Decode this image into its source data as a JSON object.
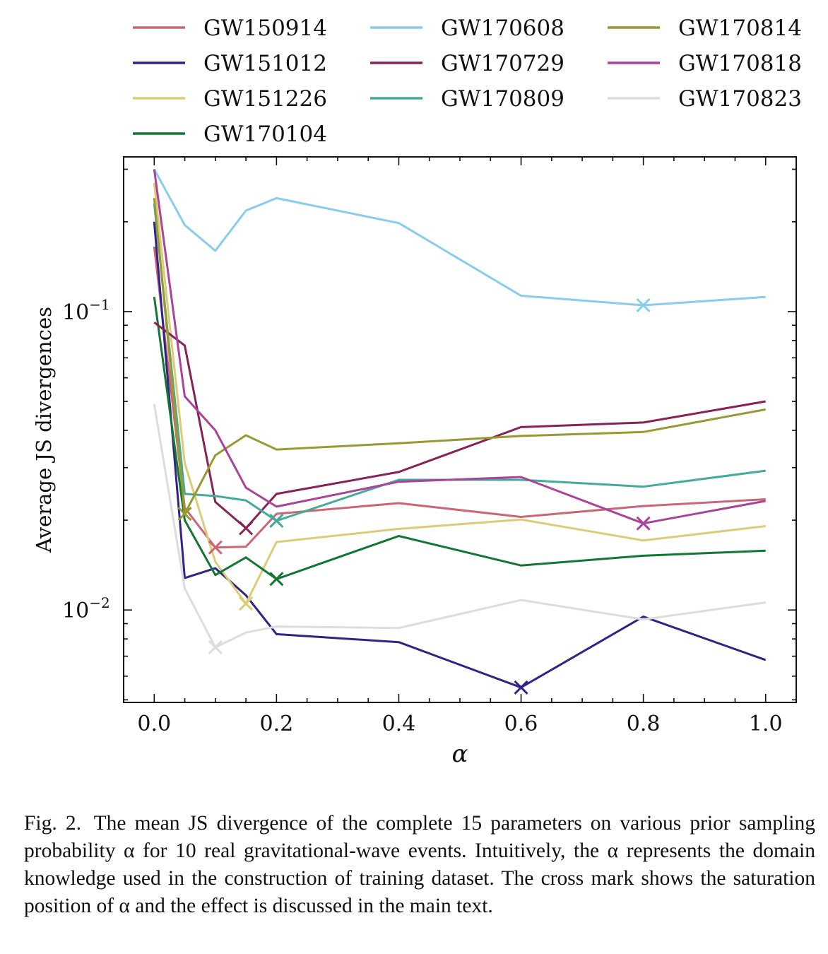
{
  "chart_data": {
    "type": "line",
    "yscale": "log",
    "xlabel": "α",
    "ylabel": "Average JS divergences",
    "xlim": [
      -0.05,
      1.05
    ],
    "ylim": [
      0.0049,
      0.33
    ],
    "xticks": [
      0.0,
      0.2,
      0.4,
      0.6,
      0.8,
      1.0
    ],
    "xtick_labels": [
      "0.0",
      "0.2",
      "0.4",
      "0.6",
      "0.8",
      "1.0"
    ],
    "yticks": [
      0.01,
      0.1
    ],
    "ytick_labels": [
      {
        "base": "10",
        "exp": "−2"
      },
      {
        "base": "10",
        "exp": "−1"
      }
    ],
    "legend_position": "top",
    "x": [
      0.0,
      0.05,
      0.1,
      0.15,
      0.2,
      0.4,
      0.6,
      0.8,
      1.0
    ],
    "series": [
      {
        "name": "GW150914",
        "color": "#cc6677",
        "values": [
          0.165,
          0.022,
          0.0162,
          0.0163,
          0.021,
          0.0228,
          0.0205,
          0.0223,
          0.0235
        ],
        "cross_x": 0.1
      },
      {
        "name": "GW151012",
        "color": "#332288",
        "values": [
          0.2,
          0.0128,
          0.0138,
          0.0112,
          0.0083,
          0.0078,
          0.0055,
          0.0095,
          0.0068
        ],
        "cross_x": 0.6
      },
      {
        "name": "GW151226",
        "color": "#ddcc77",
        "values": [
          0.27,
          0.031,
          0.0145,
          0.0105,
          0.0169,
          0.0187,
          0.0201,
          0.0171,
          0.0191
        ],
        "cross_x": 0.15
      },
      {
        "name": "GW170104",
        "color": "#117733",
        "values": [
          0.112,
          0.02,
          0.0131,
          0.015,
          0.0127,
          0.0177,
          0.0141,
          0.0152,
          0.0158
        ],
        "cross_x": 0.2
      },
      {
        "name": "GW170608",
        "color": "#88ccee",
        "values": [
          0.3,
          0.195,
          0.16,
          0.218,
          0.24,
          0.198,
          0.113,
          0.105,
          0.112
        ],
        "cross_x": 0.8
      },
      {
        "name": "GW170729",
        "color": "#882255",
        "values": [
          0.092,
          0.077,
          0.023,
          0.0188,
          0.0245,
          0.029,
          0.041,
          0.0425,
          0.05
        ],
        "cross_x": 0.15
      },
      {
        "name": "GW170809",
        "color": "#44aa99",
        "values": [
          0.23,
          0.0245,
          0.0241,
          0.0233,
          0.0199,
          0.0273,
          0.0273,
          0.0259,
          0.0293
        ],
        "cross_x": 0.2
      },
      {
        "name": "GW170814",
        "color": "#999933",
        "values": [
          0.24,
          0.021,
          0.033,
          0.0385,
          0.0345,
          0.0362,
          0.0383,
          0.0395,
          0.047
        ],
        "cross_x": 0.05
      },
      {
        "name": "GW170818",
        "color": "#aa4499",
        "values": [
          0.3,
          0.052,
          0.04,
          0.0257,
          0.0222,
          0.0269,
          0.0279,
          0.0195,
          0.0232
        ],
        "cross_x": 0.8
      },
      {
        "name": "GW170823",
        "color": "#dddddd",
        "values": [
          0.049,
          0.0118,
          0.0075,
          0.0084,
          0.0088,
          0.0087,
          0.0108,
          0.0093,
          0.0106
        ],
        "cross_x": 0.1
      }
    ]
  },
  "caption": {
    "label": "Fig. 2.",
    "text": "The mean JS divergence of the complete 15 parameters on various prior sampling probability α for 10 real gravitational-wave events. Intuitively, the α represents the domain knowledge used in the construction of training dataset. The cross mark shows the saturation position of α and the effect is discussed in the main text."
  }
}
